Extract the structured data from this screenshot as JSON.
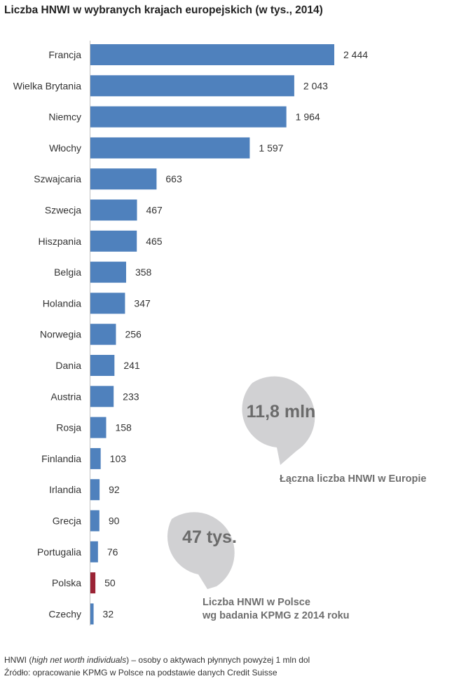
{
  "title": "Liczba HNWI w wybranych krajach europejskich (w tys., 2014)",
  "colors": {
    "bar": "#4f81bd",
    "highlight": "#9b2335",
    "bubble": "#d1d1d3"
  },
  "chart_data": {
    "type": "bar",
    "orientation": "horizontal",
    "categories": [
      "Francja",
      "Wielka Brytania",
      "Niemcy",
      "Włochy",
      "Szwajcaria",
      "Szwecja",
      "Hiszpania",
      "Belgia",
      "Holandia",
      "Norwegia",
      "Dania",
      "Austria",
      "Rosja",
      "Finlandia",
      "Irlandia",
      "Grecja",
      "Portugalia",
      "Polska",
      "Czechy"
    ],
    "values": [
      2444,
      2043,
      1964,
      1597,
      663,
      467,
      465,
      358,
      347,
      256,
      241,
      233,
      158,
      103,
      92,
      90,
      76,
      50,
      32
    ],
    "value_labels": [
      "2 444",
      "2 043",
      "1 964",
      "1 597",
      "663",
      "467",
      "465",
      "358",
      "347",
      "256",
      "241",
      "233",
      "158",
      "103",
      "92",
      "90",
      "76",
      "50",
      "32"
    ],
    "highlight_category": "Polska",
    "xlim": [
      0,
      2444
    ]
  },
  "callouts": [
    {
      "value": "11,8 mln",
      "caption_lines": [
        "Łączna liczba HNWI w Europie"
      ]
    },
    {
      "value": "47 tys.",
      "caption_lines": [
        "Liczba HNWI w Polsce",
        "wg badania KPMG z 2014 roku"
      ]
    }
  ],
  "footer": {
    "definition_term": "HNWI",
    "definition_open": " (",
    "definition_italic": "high net worth individuals",
    "definition_rest": ") – osoby o aktywach płynnych powyżej 1 mln dol",
    "source": "Źródło: opracowanie KPMG w Polsce na podstawie danych Credit Suisse"
  }
}
